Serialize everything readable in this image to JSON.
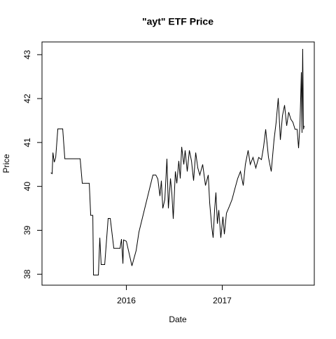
{
  "chart_data": {
    "type": "line",
    "title": "\"ayt\" ETF Price",
    "x_label": "Date",
    "y_label": "Price",
    "x": [
      2015.212,
      2015.226,
      2015.234,
      2015.248,
      2015.263,
      2015.285,
      2015.336,
      2015.358,
      2015.518,
      2015.54,
      2015.613,
      2015.628,
      2015.65,
      2015.657,
      2015.708,
      2015.723,
      2015.737,
      2015.774,
      2015.81,
      2015.832,
      2015.869,
      2015.934,
      2015.949,
      2015.964,
      2015.971,
      2016.0,
      2016.058,
      2016.102,
      2016.131,
      2016.277,
      2016.307,
      2016.328,
      2016.35,
      2016.365,
      2016.38,
      2016.401,
      2016.423,
      2016.438,
      2016.46,
      2016.474,
      2016.489,
      2016.511,
      2016.526,
      2016.547,
      2016.562,
      2016.577,
      2016.599,
      2016.613,
      2016.635,
      2016.657,
      2016.679,
      2016.701,
      2016.723,
      2016.745,
      2016.766,
      2016.796,
      2016.825,
      2016.854,
      2016.869,
      2016.891,
      2016.905,
      2016.92,
      2016.934,
      2016.949,
      2016.964,
      2016.985,
      2017.007,
      2017.022,
      2017.044,
      2017.073,
      2017.102,
      2017.131,
      2017.161,
      2017.19,
      2017.219,
      2017.241,
      2017.27,
      2017.292,
      2017.321,
      2017.35,
      2017.38,
      2017.409,
      2017.431,
      2017.453,
      2017.482,
      2017.511,
      2017.54,
      2017.562,
      2017.584,
      2017.606,
      2017.628,
      2017.65,
      2017.672,
      2017.693,
      2017.715,
      2017.737,
      2017.759,
      2017.781,
      2017.796,
      2017.81,
      2017.825,
      2017.832,
      2017.839,
      2017.847,
      2017.854
    ],
    "series": [
      {
        "name": "Price",
        "color": "#000000",
        "values": [
          40.31,
          40.29,
          40.77,
          40.55,
          40.66,
          41.31,
          41.31,
          40.63,
          40.63,
          40.07,
          40.07,
          39.34,
          39.34,
          37.98,
          37.98,
          38.83,
          38.22,
          38.22,
          39.27,
          39.27,
          38.59,
          38.59,
          38.8,
          38.24,
          38.78,
          38.75,
          38.19,
          38.54,
          38.96,
          40.26,
          40.26,
          40.17,
          39.78,
          40.13,
          39.5,
          39.7,
          40.63,
          39.5,
          40.18,
          39.85,
          39.26,
          40.34,
          40.07,
          40.58,
          40.18,
          40.9,
          40.5,
          40.82,
          40.34,
          40.82,
          40.58,
          40.13,
          40.77,
          40.42,
          40.26,
          40.5,
          40.02,
          40.26,
          39.62,
          39.07,
          38.83,
          39.46,
          39.86,
          39.15,
          39.46,
          38.83,
          39.31,
          38.91,
          39.39,
          39.54,
          39.7,
          39.94,
          40.18,
          40.34,
          40.02,
          40.5,
          40.82,
          40.5,
          40.66,
          40.42,
          40.66,
          40.61,
          40.9,
          41.3,
          40.66,
          40.34,
          41.06,
          41.46,
          42.01,
          41.06,
          41.61,
          41.85,
          41.38,
          41.69,
          41.53,
          41.46,
          41.3,
          41.3,
          40.87,
          41.38,
          42.6,
          41.22,
          43.13,
          41.3,
          41.38
        ]
      }
    ],
    "xlim": [
      2015.12,
      2017.96
    ],
    "xticks": [
      2016,
      2017
    ],
    "ylim": [
      37.75,
      43.29
    ],
    "yticks": [
      38,
      39,
      40,
      41,
      42,
      43
    ]
  }
}
